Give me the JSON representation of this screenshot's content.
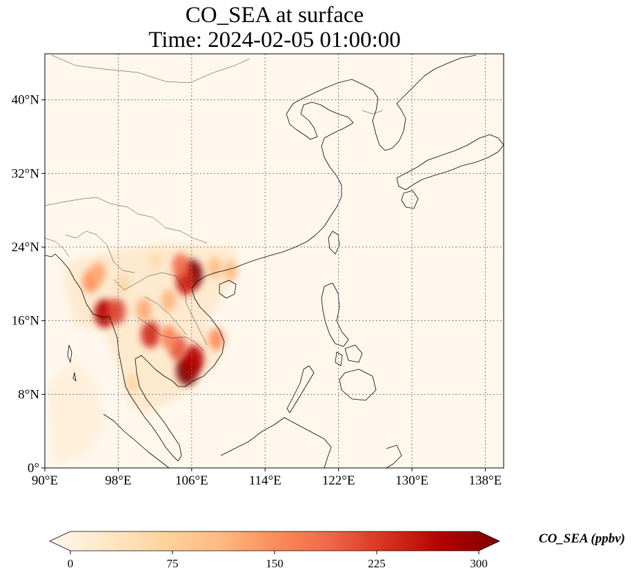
{
  "title": {
    "line1": "CO_SEA at surface",
    "line2": "Time: 2024-02-05 01:00:00"
  },
  "map": {
    "lon_range": [
      90,
      140
    ],
    "lat_range": [
      0,
      45
    ],
    "lon_ticks": [
      {
        "value": 90,
        "label": "90°E"
      },
      {
        "value": 98,
        "label": "98°E"
      },
      {
        "value": 106,
        "label": "106°E"
      },
      {
        "value": 114,
        "label": "114°E"
      },
      {
        "value": 122,
        "label": "122°E"
      },
      {
        "value": 130,
        "label": "130°E"
      },
      {
        "value": 138,
        "label": "138°E"
      }
    ],
    "lat_ticks": [
      {
        "value": 0,
        "label": "0°"
      },
      {
        "value": 8,
        "label": "8°N"
      },
      {
        "value": 16,
        "label": "16°N"
      },
      {
        "value": 24,
        "label": "24°N"
      },
      {
        "value": 32,
        "label": "32°N"
      },
      {
        "value": 40,
        "label": "40°N"
      }
    ],
    "gridlines": "dotted",
    "hotspots": [
      {
        "lon": 105.5,
        "lat": 10.6,
        "value": 300
      },
      {
        "lon": 106.2,
        "lat": 11.8,
        "value": 260
      },
      {
        "lon": 106.0,
        "lat": 21.0,
        "value": 300
      },
      {
        "lon": 105.3,
        "lat": 20.2,
        "value": 230
      },
      {
        "lon": 104.8,
        "lat": 22.0,
        "value": 180
      },
      {
        "lon": 96.5,
        "lat": 16.8,
        "value": 260
      },
      {
        "lon": 97.8,
        "lat": 17.0,
        "value": 210
      },
      {
        "lon": 101.5,
        "lat": 14.5,
        "value": 230
      },
      {
        "lon": 100.8,
        "lat": 17.2,
        "value": 130
      },
      {
        "lon": 95.0,
        "lat": 20.3,
        "value": 150
      },
      {
        "lon": 95.8,
        "lat": 21.2,
        "value": 130
      },
      {
        "lon": 104.5,
        "lat": 13.0,
        "value": 200
      },
      {
        "lon": 103.5,
        "lat": 14.2,
        "value": 160
      },
      {
        "lon": 108.7,
        "lat": 14.0,
        "value": 150
      },
      {
        "lon": 103.5,
        "lat": 18.2,
        "value": 120
      },
      {
        "lon": 108.5,
        "lat": 21.8,
        "value": 110
      },
      {
        "lon": 110.2,
        "lat": 21.4,
        "value": 110
      },
      {
        "lon": 99.5,
        "lat": 9.2,
        "value": 70
      },
      {
        "lon": 102.0,
        "lat": 22.5,
        "value": 60
      },
      {
        "lon": 98.5,
        "lat": 20.0,
        "value": 70
      }
    ]
  },
  "colorbar": {
    "label": "CO_SEA (ppbv)",
    "min": 0,
    "max": 300,
    "ticks": [
      {
        "value": 0,
        "label": "0"
      },
      {
        "value": 75,
        "label": "75"
      },
      {
        "value": 150,
        "label": "150"
      },
      {
        "value": 225,
        "label": "225"
      },
      {
        "value": 300,
        "label": "300"
      }
    ],
    "colormap": "OrRd",
    "colors": [
      "#fff7ec",
      "#fee8c8",
      "#fdd49e",
      "#fdbb84",
      "#fc8d59",
      "#ef6548",
      "#d7301f",
      "#b30000",
      "#7f0000"
    ],
    "extend": "both"
  }
}
